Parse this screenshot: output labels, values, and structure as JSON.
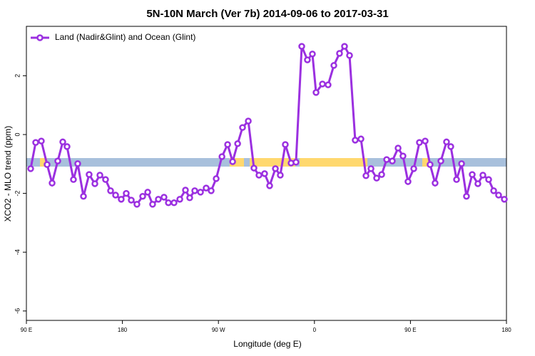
{
  "chart_data": {
    "type": "line",
    "title": "5N-10N March (Ver 7b)   2014-09-06 to 2017-03-31",
    "x_label": "Longitude (deg E)",
    "y_label": "XCO2 - MLO trend (ppm)",
    "legend_position": "top-left",
    "xlim": [
      90,
      540
    ],
    "xticks": [
      {
        "value": 90,
        "label": "90 E"
      },
      180,
      {
        "value": 270,
        "label": "90 W"
      },
      {
        "value": 360,
        "label": "0"
      },
      {
        "value": 450,
        "label": "90 E"
      },
      {
        "value": 540,
        "label": "180"
      }
    ],
    "ylim": [
      -6.32,
      3.68
    ],
    "yticks": [
      -6,
      -4,
      -2,
      0,
      2
    ],
    "x": [
      94.0,
      98.7,
      104.0,
      109.4,
      114.1,
      119.4,
      124.1,
      128.1,
      134.1,
      138.1,
      143.5,
      148.8,
      154.2,
      158.9,
      164.2,
      168.9,
      173.6,
      178.9,
      183.6,
      188.3,
      193.6,
      199.0,
      203.7,
      208.3,
      213.7,
      219.0,
      223.1,
      228.4,
      233.8,
      239.1,
      243.1,
      247.8,
      253.2,
      258.5,
      263.2,
      267.9,
      273.3,
      278.6,
      283.3,
      288.0,
      292.6,
      298.0,
      303.3,
      308.0,
      313.3,
      318.0,
      323.4,
      328.0,
      332.7,
      338.1,
      342.7,
      348.1,
      353.4,
      358.1,
      361.5,
      367.5,
      372.8,
      378.2,
      383.5,
      388.2,
      392.9,
      398.2,
      403.6,
      408.3,
      413.0,
      418.3,
      423.0,
      427.7,
      433.0,
      438.4,
      443.0,
      447.7,
      453.1,
      458.4,
      463.8,
      468.4,
      473.1,
      478.5,
      483.8,
      487.8,
      493.2,
      497.9,
      502.5,
      507.9,
      513.2,
      517.9,
      523.3,
      528.0,
      532.6,
      538.0
    ],
    "series": [
      {
        "name": "Land (Nadir&Glint) and Ocean (Glint)",
        "color": "#9b30e0",
        "values": [
          -1.16,
          -0.27,
          -0.22,
          -1.02,
          -1.65,
          -0.9,
          -0.25,
          -0.41,
          -1.53,
          -0.99,
          -2.1,
          -1.36,
          -1.67,
          -1.38,
          -1.53,
          -1.91,
          -2.06,
          -2.2,
          -2.0,
          -2.23,
          -2.37,
          -2.1,
          -1.96,
          -2.37,
          -2.2,
          -2.13,
          -2.32,
          -2.32,
          -2.2,
          -1.89,
          -2.15,
          -1.91,
          -1.96,
          -1.82,
          -1.91,
          -1.5,
          -0.75,
          -0.34,
          -0.92,
          -0.31,
          0.24,
          0.46,
          -1.14,
          -1.38,
          -1.33,
          -1.74,
          -1.16,
          -1.38,
          -0.34,
          -0.97,
          -0.94,
          3.0,
          2.54,
          2.74,
          1.43,
          1.72,
          1.69,
          2.35,
          2.76,
          3.0,
          2.69,
          -0.19,
          -0.15,
          -1.4,
          -1.16,
          -1.48,
          -1.36,
          -0.85,
          -0.9,
          -0.46,
          -0.73,
          -1.6,
          -1.16,
          -0.27,
          -0.22,
          -1.02,
          -1.65,
          -0.9,
          -0.25,
          -0.41,
          -1.53,
          -0.99,
          -2.1,
          -1.36,
          -1.67,
          -1.38,
          -1.53,
          -1.91,
          -2.06,
          -2.2
        ]
      }
    ]
  }
}
